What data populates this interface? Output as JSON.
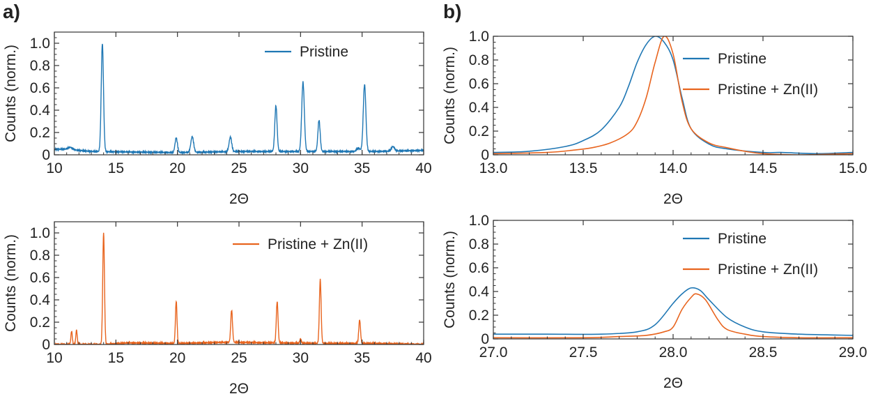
{
  "figure": {
    "panel_labels": [
      "a)",
      "b)"
    ],
    "colors": {
      "pristine": "#1f77b4",
      "zn": "#e8641e",
      "frame": "#333333"
    }
  },
  "chart_data": [
    {
      "id": "a-top",
      "type": "line",
      "xlabel": "2Θ",
      "ylabel": "Counts (norm.)",
      "xlim": [
        10,
        40
      ],
      "ylim": [
        0,
        1.1
      ],
      "xticks": [
        10,
        15,
        20,
        25,
        30,
        35,
        40
      ],
      "xtick_labels": [
        "10",
        "15",
        "20",
        "25",
        "30",
        "35",
        "40"
      ],
      "yticks": [
        0,
        0.2,
        0.4,
        0.6,
        0.8,
        1.0
      ],
      "ytick_labels": [
        "0",
        "0.2",
        "0.4",
        "0.6",
        "0.8",
        "1.0"
      ],
      "legend": "top-right",
      "grid": false,
      "series": [
        {
          "name": "Pristine",
          "color": "#1f77b4",
          "baseline": [
            [
              10,
              0.05
            ],
            [
              11,
              0.05
            ],
            [
              13,
              0.03
            ],
            [
              20,
              0.02
            ],
            [
              25,
              0.03
            ],
            [
              30,
              0.03
            ],
            [
              34,
              0.03
            ],
            [
              36,
              0.03
            ],
            [
              40,
              0.04
            ]
          ],
          "peaks": [
            [
              11.3,
              0.02,
              0.25
            ],
            [
              13.9,
              0.97,
              0.13
            ],
            [
              19.9,
              0.13,
              0.14
            ],
            [
              21.2,
              0.14,
              0.16
            ],
            [
              24.3,
              0.13,
              0.15
            ],
            [
              28.0,
              0.41,
              0.13
            ],
            [
              30.2,
              0.62,
              0.15
            ],
            [
              31.5,
              0.28,
              0.13
            ],
            [
              34.7,
              0.03,
              0.2
            ],
            [
              35.2,
              0.6,
              0.15
            ],
            [
              37.5,
              0.04,
              0.18
            ]
          ]
        }
      ]
    },
    {
      "id": "a-bottom",
      "type": "line",
      "xlabel": "2Θ",
      "ylabel": "Counts (norm.)",
      "xlim": [
        10,
        40
      ],
      "ylim": [
        0,
        1.1
      ],
      "xticks": [
        10,
        15,
        20,
        25,
        30,
        35,
        40
      ],
      "xtick_labels": [
        "10",
        "15",
        "20",
        "25",
        "30",
        "35",
        "40"
      ],
      "yticks": [
        0,
        0.2,
        0.4,
        0.6,
        0.8,
        1.0
      ],
      "ytick_labels": [
        "0",
        "0.2",
        "0.4",
        "0.6",
        "0.8",
        "1.0"
      ],
      "legend": "top-right",
      "grid": false,
      "series": [
        {
          "name": "Pristine + Zn(II)",
          "color": "#e8641e",
          "baseline": [
            [
              10,
              0.0
            ],
            [
              14,
              0.0
            ],
            [
              16,
              0.015
            ],
            [
              20,
              0.01
            ],
            [
              24,
              0.02
            ],
            [
              28,
              0.015
            ],
            [
              32,
              0.01
            ],
            [
              36,
              0.01
            ],
            [
              40,
              0.0
            ]
          ],
          "peaks": [
            [
              11.4,
              0.12,
              0.08
            ],
            [
              11.8,
              0.13,
              0.08
            ],
            [
              14.0,
              1.0,
              0.1
            ],
            [
              19.9,
              0.38,
              0.09
            ],
            [
              24.4,
              0.29,
              0.1
            ],
            [
              28.1,
              0.37,
              0.1
            ],
            [
              30.0,
              0.04,
              0.08
            ],
            [
              31.6,
              0.57,
              0.1
            ],
            [
              34.8,
              0.21,
              0.1
            ]
          ]
        }
      ]
    },
    {
      "id": "b-top",
      "type": "line",
      "xlabel": "2Θ",
      "ylabel": "Counts (norm.)",
      "xlim": [
        13.0,
        15.0
      ],
      "ylim": [
        0,
        1.0
      ],
      "xticks": [
        13.0,
        13.5,
        14.0,
        14.5,
        15.0
      ],
      "xtick_labels": [
        "13.0",
        "13.5",
        "14.0",
        "14.5",
        "15.0"
      ],
      "yticks": [
        0,
        0.2,
        0.4,
        0.6,
        0.8,
        1.0
      ],
      "ytick_labels": [
        "0",
        "0.2",
        "0.4",
        "0.6",
        "0.8",
        "1.0"
      ],
      "legend": "top-right",
      "grid": false,
      "series": [
        {
          "name": "Pristine",
          "color": "#1f77b4",
          "points": [
            [
              13.0,
              0.02
            ],
            [
              13.2,
              0.03
            ],
            [
              13.4,
              0.07
            ],
            [
              13.5,
              0.12
            ],
            [
              13.6,
              0.21
            ],
            [
              13.7,
              0.4
            ],
            [
              13.75,
              0.57
            ],
            [
              13.8,
              0.78
            ],
            [
              13.85,
              0.93
            ],
            [
              13.9,
              1.0
            ],
            [
              13.95,
              0.95
            ],
            [
              14.0,
              0.8
            ],
            [
              14.05,
              0.48
            ],
            [
              14.1,
              0.22
            ],
            [
              14.2,
              0.09
            ],
            [
              14.3,
              0.05
            ],
            [
              14.5,
              0.02
            ],
            [
              14.6,
              0.02
            ],
            [
              14.8,
              0.01
            ],
            [
              15.0,
              0.02
            ]
          ]
        },
        {
          "name": "Pristine + Zn(II)",
          "color": "#e8641e",
          "points": [
            [
              13.0,
              0.01
            ],
            [
              13.3,
              0.02
            ],
            [
              13.45,
              0.04
            ],
            [
              13.55,
              0.06
            ],
            [
              13.65,
              0.1
            ],
            [
              13.75,
              0.18
            ],
            [
              13.8,
              0.28
            ],
            [
              13.85,
              0.48
            ],
            [
              13.9,
              0.78
            ],
            [
              13.95,
              1.0
            ],
            [
              14.0,
              0.85
            ],
            [
              14.05,
              0.45
            ],
            [
              14.1,
              0.22
            ],
            [
              14.2,
              0.1
            ],
            [
              14.3,
              0.06
            ],
            [
              14.4,
              0.03
            ],
            [
              14.5,
              0.01
            ],
            [
              14.7,
              0.0
            ],
            [
              15.0,
              0.01
            ]
          ]
        }
      ]
    },
    {
      "id": "b-bottom",
      "type": "line",
      "xlabel": "2Θ",
      "ylabel": "Counts (norm.)",
      "xlim": [
        27.0,
        29.0
      ],
      "ylim": [
        0,
        1.0
      ],
      "xticks": [
        27.0,
        27.5,
        28.0,
        28.5,
        29.0
      ],
      "xtick_labels": [
        "27.0",
        "27.5",
        "28.0",
        "28.5",
        "29.0"
      ],
      "yticks": [
        0,
        0.2,
        0.4,
        0.6,
        0.8,
        1.0
      ],
      "ytick_labels": [
        "0",
        "0.2",
        "0.4",
        "0.6",
        "0.8",
        "1.0"
      ],
      "legend": "top-right",
      "grid": false,
      "series": [
        {
          "name": "Pristine",
          "color": "#1f77b4",
          "points": [
            [
              27.0,
              0.04
            ],
            [
              27.3,
              0.04
            ],
            [
              27.6,
              0.04
            ],
            [
              27.8,
              0.06
            ],
            [
              27.9,
              0.12
            ],
            [
              28.0,
              0.3
            ],
            [
              28.05,
              0.38
            ],
            [
              28.1,
              0.43
            ],
            [
              28.15,
              0.41
            ],
            [
              28.2,
              0.33
            ],
            [
              28.3,
              0.18
            ],
            [
              28.4,
              0.1
            ],
            [
              28.5,
              0.06
            ],
            [
              28.7,
              0.04
            ],
            [
              29.0,
              0.03
            ]
          ]
        },
        {
          "name": "Pristine + Zn(II)",
          "color": "#e8641e",
          "points": [
            [
              27.0,
              0.01
            ],
            [
              27.5,
              0.01
            ],
            [
              27.7,
              0.02
            ],
            [
              27.85,
              0.03
            ],
            [
              27.95,
              0.06
            ],
            [
              28.0,
              0.1
            ],
            [
              28.05,
              0.25
            ],
            [
              28.1,
              0.35
            ],
            [
              28.13,
              0.38
            ],
            [
              28.18,
              0.33
            ],
            [
              28.25,
              0.16
            ],
            [
              28.3,
              0.08
            ],
            [
              28.4,
              0.04
            ],
            [
              28.5,
              0.02
            ],
            [
              28.7,
              0.01
            ],
            [
              29.0,
              0.01
            ]
          ]
        }
      ]
    }
  ]
}
